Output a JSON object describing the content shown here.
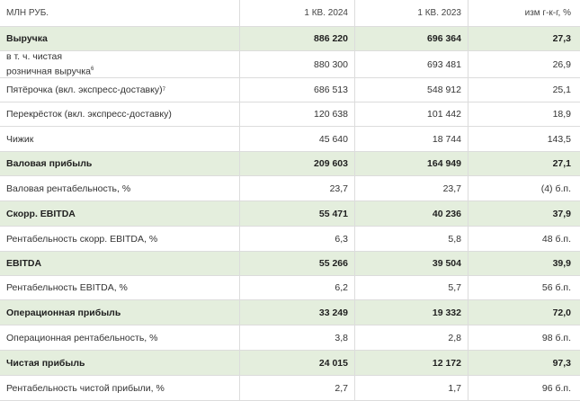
{
  "header": {
    "label": "МЛН РУБ.",
    "col1": "1 КВ. 2024",
    "col2": "1 КВ. 2023",
    "col3": "изм г-к-г, %"
  },
  "rows": [
    {
      "label": "Выручка",
      "v1": "886 220",
      "v2": "696 364",
      "v3": "27,3"
    },
    {
      "label_line1": "в т. ч. чистая",
      "label_line2": "розничная выручка",
      "label_sup": "6",
      "v1": "880 300",
      "v2": "693 481",
      "v3": "26,9"
    },
    {
      "label": "Пятёрочка (вкл. экспресс-доставку)",
      "label_sup": "7",
      "v1": "686 513",
      "v2": "548 912",
      "v3": "25,1"
    },
    {
      "label": "Перекрёсток (вкл. экспресс-доставку)",
      "v1": "120 638",
      "v2": "101 442",
      "v3": "18,9"
    },
    {
      "label": "Чижик",
      "v1": "45 640",
      "v2": "18 744",
      "v3": "143,5"
    },
    {
      "label": "Валовая прибыль",
      "v1": "209 603",
      "v2": "164 949",
      "v3": "27,1"
    },
    {
      "label": "Валовая рентабельность, %",
      "v1": "23,7",
      "v2": "23,7",
      "v3": "(4) б.п."
    },
    {
      "label": "Скорр. EBITDA",
      "v1": "55 471",
      "v2": "40 236",
      "v3": "37,9"
    },
    {
      "label": "Рентабельность скорр. EBITDA, %",
      "v1": "6,3",
      "v2": "5,8",
      "v3": "48 б.п."
    },
    {
      "label": "EBITDA",
      "v1": "55 266",
      "v2": "39 504",
      "v3": "39,9"
    },
    {
      "label": "Рентабельность EBITDA, %",
      "v1": "6,2",
      "v2": "5,7",
      "v3": "56 б.п."
    },
    {
      "label": "Операционная прибыль",
      "v1": "33 249",
      "v2": "19 332",
      "v3": "72,0"
    },
    {
      "label": "Операционная рентабельность, %",
      "v1": "3,8",
      "v2": "2,8",
      "v3": "98 б.п."
    },
    {
      "label": "Чистая прибыль",
      "v1": "24 015",
      "v2": "12 172",
      "v3": "97,3"
    },
    {
      "label": "Рентабельность чистой прибыли, %",
      "v1": "2,7",
      "v2": "1,7",
      "v3": "96 б.п."
    }
  ]
}
